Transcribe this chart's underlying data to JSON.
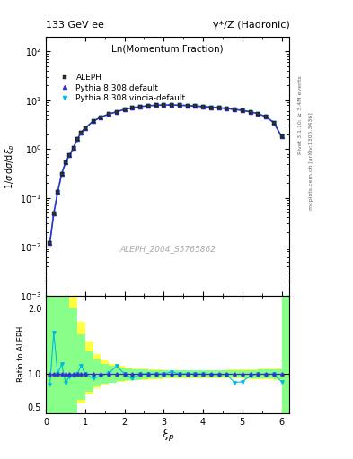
{
  "title_left": "133 GeV ee",
  "title_right": "γ*/Z (Hadronic)",
  "inner_title": "Ln(Momentum Fraction)",
  "xlabel": "ξ_p",
  "ylabel_main": "1/σ dσ/dξₚ",
  "ylabel_ratio": "Ratio to ALEPH",
  "watermark": "ALEPH_2004_S5765862",
  "right_label": "Rivet 3.1.10; ≥ 3.4M events",
  "right_label2": "mcplots.cern.ch [arXiv:1306.3436]",
  "data_x": [
    0.1,
    0.2,
    0.3,
    0.4,
    0.5,
    0.6,
    0.7,
    0.8,
    0.9,
    1.0,
    1.2,
    1.4,
    1.6,
    1.8,
    2.0,
    2.2,
    2.4,
    2.6,
    2.8,
    3.0,
    3.2,
    3.4,
    3.6,
    3.8,
    4.0,
    4.2,
    4.4,
    4.6,
    4.8,
    5.0,
    5.2,
    5.4,
    5.6,
    5.8,
    6.0
  ],
  "data_y": [
    0.012,
    0.048,
    0.13,
    0.31,
    0.53,
    0.75,
    1.05,
    1.6,
    2.2,
    2.7,
    3.7,
    4.5,
    5.2,
    5.8,
    6.5,
    7.0,
    7.4,
    7.7,
    7.9,
    8.0,
    8.0,
    7.9,
    7.8,
    7.6,
    7.4,
    7.2,
    7.0,
    6.8,
    6.5,
    6.2,
    5.8,
    5.3,
    4.6,
    3.5,
    1.8
  ],
  "py_default_x": [
    0.1,
    0.2,
    0.3,
    0.4,
    0.5,
    0.6,
    0.7,
    0.8,
    0.9,
    1.0,
    1.2,
    1.4,
    1.6,
    1.8,
    2.0,
    2.2,
    2.4,
    2.6,
    2.8,
    3.0,
    3.2,
    3.4,
    3.6,
    3.8,
    4.0,
    4.2,
    4.4,
    4.6,
    4.8,
    5.0,
    5.2,
    5.4,
    5.6,
    5.8,
    6.0
  ],
  "py_default_y": [
    0.012,
    0.048,
    0.13,
    0.31,
    0.53,
    0.75,
    1.05,
    1.6,
    2.2,
    2.7,
    3.7,
    4.5,
    5.2,
    5.8,
    6.5,
    7.0,
    7.4,
    7.7,
    7.9,
    8.0,
    8.0,
    7.9,
    7.8,
    7.6,
    7.4,
    7.2,
    7.0,
    6.8,
    6.5,
    6.2,
    5.8,
    5.3,
    4.6,
    3.5,
    1.8
  ],
  "py_vincia_x": [
    0.1,
    0.2,
    0.3,
    0.4,
    0.5,
    0.6,
    0.7,
    0.8,
    0.9,
    1.0,
    1.2,
    1.4,
    1.6,
    1.8,
    2.0,
    2.2,
    2.4,
    2.6,
    2.8,
    3.0,
    3.2,
    3.4,
    3.6,
    3.8,
    4.0,
    4.2,
    4.4,
    4.6,
    4.8,
    5.0,
    5.2,
    5.4,
    5.6,
    5.8,
    6.0
  ],
  "py_vincia_y": [
    0.012,
    0.048,
    0.13,
    0.31,
    0.53,
    0.75,
    1.05,
    1.6,
    2.2,
    2.7,
    3.7,
    4.5,
    5.2,
    5.8,
    6.5,
    7.0,
    7.4,
    7.7,
    7.9,
    8.0,
    8.0,
    7.9,
    7.8,
    7.6,
    7.4,
    7.2,
    7.0,
    6.8,
    6.5,
    6.2,
    5.8,
    5.3,
    4.6,
    3.5,
    1.8
  ],
  "ratio_x": [
    0.1,
    0.2,
    0.3,
    0.4,
    0.5,
    0.6,
    0.7,
    0.8,
    0.9,
    1.0,
    1.2,
    1.4,
    1.6,
    1.8,
    2.0,
    2.2,
    2.4,
    2.6,
    2.8,
    3.0,
    3.2,
    3.4,
    3.6,
    3.8,
    4.0,
    4.2,
    4.4,
    4.6,
    4.8,
    5.0,
    5.2,
    5.4,
    5.6,
    5.8,
    6.0
  ],
  "ratio_default_y": [
    1.0,
    1.0,
    1.0,
    1.0,
    1.0,
    1.0,
    1.0,
    1.0,
    1.0,
    1.0,
    1.0,
    1.0,
    1.0,
    1.0,
    1.0,
    1.0,
    1.0,
    1.0,
    1.0,
    1.0,
    1.0,
    1.0,
    1.0,
    1.0,
    1.0,
    1.0,
    1.0,
    1.0,
    1.0,
    1.0,
    1.0,
    1.0,
    1.0,
    1.0,
    1.0
  ],
  "ratio_vincia_y": [
    0.83,
    1.63,
    1.0,
    1.15,
    0.87,
    0.96,
    0.97,
    1.0,
    1.13,
    1.0,
    0.93,
    0.97,
    1.01,
    1.12,
    1.0,
    0.93,
    1.0,
    1.0,
    1.0,
    1.0,
    1.03,
    1.0,
    1.0,
    1.0,
    1.0,
    0.99,
    0.99,
    0.99,
    0.87,
    0.88,
    0.97,
    1.0,
    0.99,
    1.0,
    0.88
  ],
  "band_x_edges": [
    0.0,
    0.2,
    0.4,
    0.6,
    0.8,
    1.0,
    1.2,
    1.4,
    1.6,
    1.8,
    2.0,
    2.2,
    2.4,
    2.6,
    2.8,
    3.0,
    3.2,
    3.4,
    3.6,
    3.8,
    4.0,
    4.2,
    4.4,
    4.6,
    4.8,
    5.0,
    5.2,
    5.4,
    5.6,
    5.8,
    6.0,
    6.2
  ],
  "band_yellow_lo": [
    0.4,
    0.4,
    0.4,
    0.4,
    0.55,
    0.68,
    0.78,
    0.83,
    0.86,
    0.88,
    0.89,
    0.9,
    0.91,
    0.92,
    0.92,
    0.93,
    0.93,
    0.93,
    0.93,
    0.93,
    0.93,
    0.93,
    0.93,
    0.93,
    0.93,
    0.92,
    0.92,
    0.92,
    0.92,
    0.91,
    0.4,
    0.4
  ],
  "band_yellow_hi": [
    2.5,
    2.5,
    2.5,
    2.2,
    1.8,
    1.5,
    1.3,
    1.2,
    1.15,
    1.12,
    1.1,
    1.09,
    1.08,
    1.07,
    1.07,
    1.06,
    1.06,
    1.06,
    1.06,
    1.06,
    1.06,
    1.06,
    1.06,
    1.07,
    1.07,
    1.07,
    1.07,
    1.08,
    1.08,
    1.08,
    2.5,
    2.5
  ],
  "band_green_lo": [
    0.4,
    0.4,
    0.4,
    0.4,
    0.6,
    0.72,
    0.81,
    0.85,
    0.87,
    0.89,
    0.9,
    0.91,
    0.92,
    0.93,
    0.93,
    0.94,
    0.94,
    0.94,
    0.94,
    0.94,
    0.94,
    0.94,
    0.94,
    0.94,
    0.94,
    0.93,
    0.93,
    0.93,
    0.93,
    0.92,
    0.4,
    0.4
  ],
  "band_green_hi": [
    2.2,
    2.2,
    2.2,
    2.0,
    1.6,
    1.35,
    1.22,
    1.15,
    1.12,
    1.1,
    1.08,
    1.07,
    1.07,
    1.06,
    1.06,
    1.05,
    1.05,
    1.05,
    1.05,
    1.05,
    1.05,
    1.05,
    1.05,
    1.06,
    1.06,
    1.06,
    1.06,
    1.07,
    1.07,
    1.07,
    2.2,
    2.2
  ],
  "color_data": "#000000",
  "color_default": "#3333cc",
  "color_vincia": "#00bbdd",
  "color_yellow": "#ffff44",
  "color_green": "#88ff88",
  "bg_color": "#ffffff",
  "xlim": [
    0,
    6.2
  ],
  "ylim_main_lo": 0.001,
  "ylim_main_hi": 200,
  "ylim_ratio": [
    0.4,
    2.2
  ]
}
